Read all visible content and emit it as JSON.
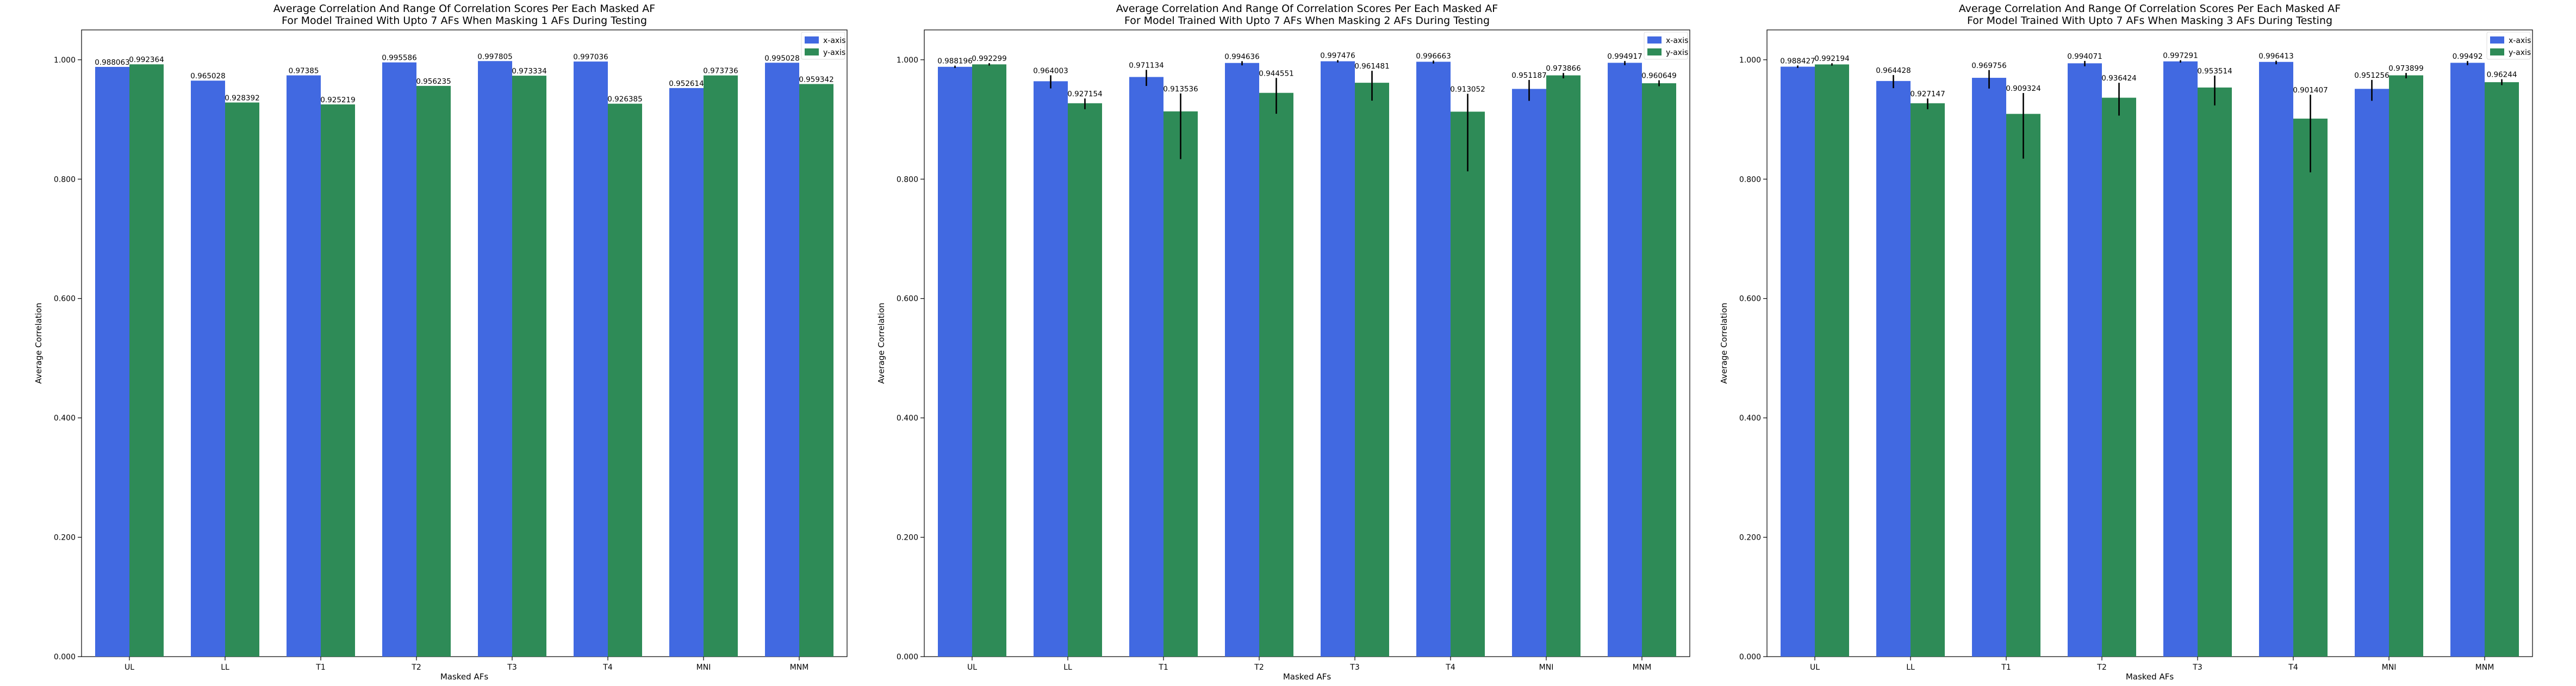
{
  "colors": {
    "x_axis": "#4169e1",
    "y_axis": "#2e8b57",
    "error_bar": "#000000"
  },
  "chart_data": [
    {
      "type": "bar",
      "title": "Average Correlation And Range Of Correlation Scores Per Each Masked AF",
      "subtitle": "For Model Trained With Upto 7 AFs When Masking 1 AFs During Testing",
      "xlabel": "Masked AFs",
      "ylabel": "Average Correlation",
      "ylim": [
        0,
        1.05
      ],
      "yticks": [
        "0.000",
        "0.200",
        "0.400",
        "0.600",
        "0.800",
        "1.000"
      ],
      "grid": false,
      "legend_position": "top-right",
      "categories": [
        "UL",
        "LL",
        "T1",
        "T2",
        "T3",
        "T4",
        "MNI",
        "MNM"
      ],
      "series": [
        {
          "name": "x-axis",
          "values": [
            0.988063,
            0.965028,
            0.97385,
            0.995586,
            0.997805,
            0.997036,
            0.952614,
            0.995028
          ],
          "labels": [
            "0.988063",
            "0.965028",
            "0.97385",
            "0.995586",
            "0.997805",
            "0.997036",
            "0.952614",
            "0.995028"
          ],
          "err_low": [
            0,
            0,
            0,
            0,
            0,
            0,
            0,
            0
          ],
          "err_high": [
            0,
            0,
            0,
            0,
            0,
            0,
            0,
            0
          ]
        },
        {
          "name": "y-axis",
          "values": [
            0.992364,
            0.928392,
            0.925219,
            0.956235,
            0.973334,
            0.926385,
            0.973736,
            0.959342
          ],
          "labels": [
            "0.992364",
            "0.928392",
            "0.925219",
            "0.956235",
            "0.973334",
            "0.926385",
            "0.973736",
            "0.959342"
          ],
          "err_low": [
            0,
            0,
            0,
            0,
            0,
            0,
            0,
            0
          ],
          "err_high": [
            0,
            0,
            0,
            0,
            0,
            0,
            0,
            0
          ]
        }
      ]
    },
    {
      "type": "bar",
      "title": "Average Correlation And Range Of Correlation Scores Per Each Masked AF",
      "subtitle": "For Model Trained With Upto 7 AFs When Masking 2 AFs During Testing",
      "xlabel": "Masked AFs",
      "ylabel": "Average Correlation",
      "ylim": [
        0,
        1.05
      ],
      "yticks": [
        "0.000",
        "0.200",
        "0.400",
        "0.600",
        "0.800",
        "1.000"
      ],
      "grid": false,
      "legend_position": "top-right",
      "categories": [
        "UL",
        "LL",
        "T1",
        "T2",
        "T3",
        "T4",
        "MNI",
        "MNM"
      ],
      "series": [
        {
          "name": "x-axis",
          "values": [
            0.988196,
            0.964003,
            0.971134,
            0.994636,
            0.997476,
            0.996663,
            0.951187,
            0.994917
          ],
          "labels": [
            "0.988196",
            "0.964003",
            "0.971134",
            "0.994636",
            "0.997476",
            "0.996663",
            "0.951187",
            "0.994917"
          ],
          "err_low": [
            0.002,
            0.012,
            0.015,
            0.004,
            0.002,
            0.003,
            0.02,
            0.004
          ],
          "err_high": [
            0.002,
            0.01,
            0.012,
            0.003,
            0.002,
            0.002,
            0.015,
            0.003
          ]
        },
        {
          "name": "y-axis",
          "values": [
            0.992299,
            0.927154,
            0.913536,
            0.944551,
            0.961481,
            0.913052,
            0.973866,
            0.960649
          ],
          "labels": [
            "0.992299",
            "0.927154",
            "0.913536",
            "0.944551",
            "0.961481",
            "0.913052",
            "0.973866",
            "0.960649"
          ],
          "err_low": [
            0.002,
            0.01,
            0.08,
            0.035,
            0.03,
            0.1,
            0.005,
            0.005
          ],
          "err_high": [
            0.002,
            0.008,
            0.03,
            0.025,
            0.02,
            0.03,
            0.004,
            0.005
          ]
        }
      ]
    },
    {
      "type": "bar",
      "title": "Average Correlation And Range Of Correlation Scores Per Each Masked AF",
      "subtitle": "For Model Trained With Upto 7 AFs When Masking 3 AFs During Testing",
      "xlabel": "Masked AFs",
      "ylabel": "Average Correlation",
      "ylim": [
        0,
        1.05
      ],
      "yticks": [
        "0.000",
        "0.200",
        "0.400",
        "0.600",
        "0.800",
        "1.000"
      ],
      "grid": false,
      "legend_position": "top-right",
      "categories": [
        "UL",
        "LL",
        "T1",
        "T2",
        "T3",
        "T4",
        "MNI",
        "MNM"
      ],
      "series": [
        {
          "name": "x-axis",
          "values": [
            0.988427,
            0.964428,
            0.969756,
            0.994071,
            0.997291,
            0.996413,
            0.951256,
            0.99492
          ],
          "labels": [
            "0.988427",
            "0.964428",
            "0.969756",
            "0.994071",
            "0.997291",
            "0.996413",
            "0.951256",
            "0.99492"
          ],
          "err_low": [
            0.002,
            0.012,
            0.018,
            0.005,
            0.002,
            0.004,
            0.02,
            0.004
          ],
          "err_high": [
            0.002,
            0.01,
            0.013,
            0.004,
            0.002,
            0.002,
            0.015,
            0.003
          ]
        },
        {
          "name": "y-axis",
          "values": [
            0.992194,
            0.927147,
            0.909324,
            0.936424,
            0.953514,
            0.901407,
            0.973899,
            0.96244
          ],
          "labels": [
            "0.992194",
            "0.927147",
            "0.909324",
            "0.936424",
            "0.953514",
            "0.901407",
            "0.973899",
            "0.96244"
          ],
          "err_low": [
            0.002,
            0.01,
            0.075,
            0.03,
            0.03,
            0.09,
            0.005,
            0.005
          ],
          "err_high": [
            0.002,
            0.008,
            0.035,
            0.025,
            0.02,
            0.04,
            0.004,
            0.005
          ]
        }
      ]
    }
  ]
}
